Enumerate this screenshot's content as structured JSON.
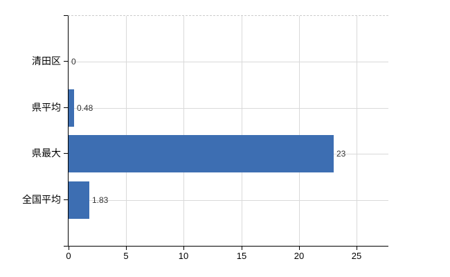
{
  "chart_data": {
    "type": "bar",
    "orientation": "horizontal",
    "title": "",
    "xlabel": "",
    "ylabel": "",
    "categories": [
      "清田区",
      "県平均",
      "県最大",
      "全国平均"
    ],
    "values": [
      0,
      0.48,
      23,
      1.83
    ],
    "value_labels": [
      "0",
      "0.48",
      "23",
      "1.83"
    ],
    "x_ticks": [
      0,
      5,
      10,
      15,
      20,
      25
    ],
    "x_tick_labels": [
      "0",
      "5",
      "10",
      "15",
      "20",
      "25"
    ],
    "xlim": [
      0,
      27.75
    ],
    "grid": true,
    "legend": false,
    "colors": {
      "bar": "#3d6eb2",
      "grid": "#d9d9d9",
      "axis": "#000000",
      "category_text": "#000000",
      "value_text": "#333333",
      "tick_text": "#000000",
      "background": "#ffffff"
    }
  }
}
